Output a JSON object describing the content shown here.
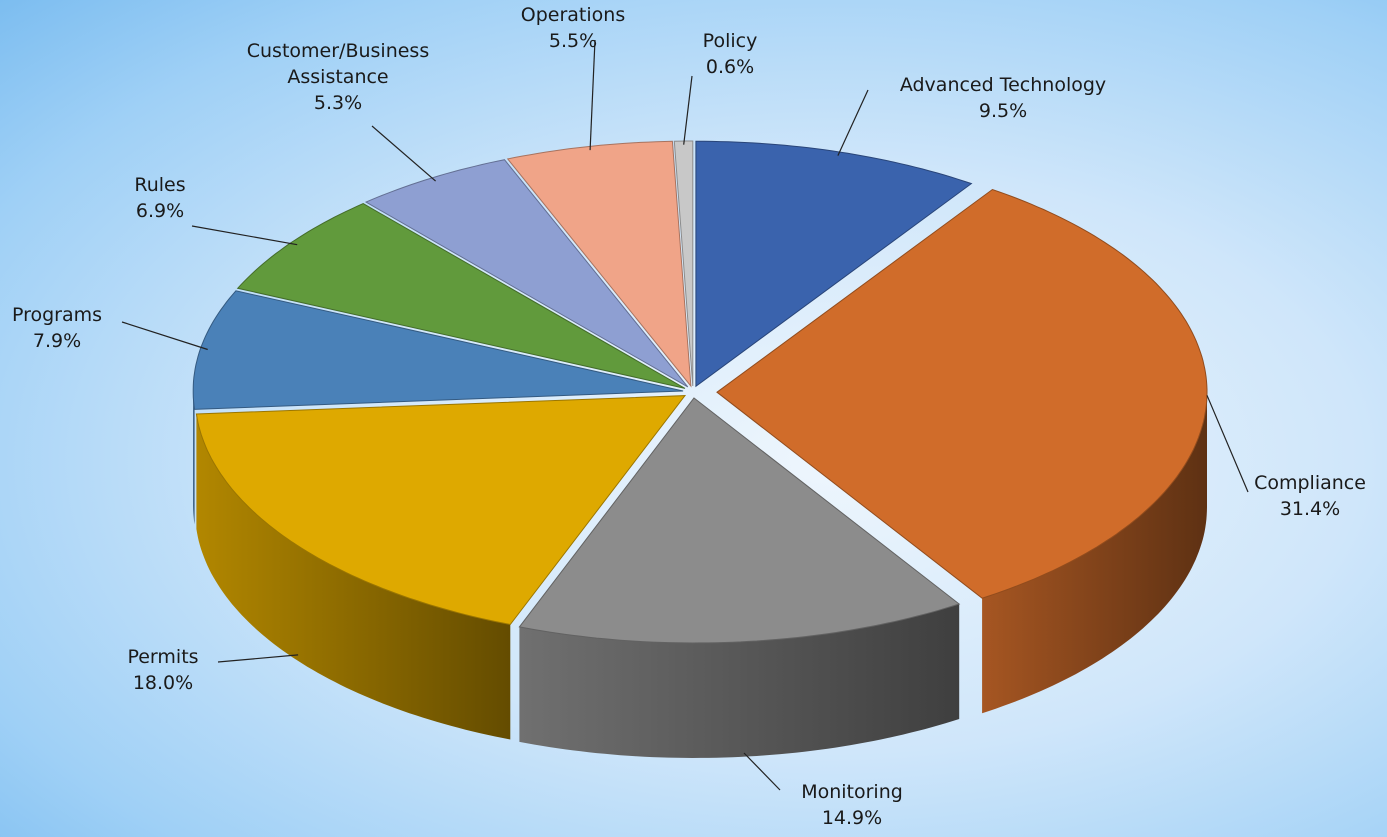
{
  "chart_data": {
    "type": "pie",
    "categories": [
      "Advanced Technology",
      "Compliance",
      "Monitoring",
      "Permits",
      "Programs",
      "Rules",
      "Customer/Business Assistance",
      "Operations",
      "Policy"
    ],
    "values": [
      9.5,
      31.4,
      14.9,
      18.0,
      7.9,
      6.9,
      5.3,
      5.5,
      0.6
    ],
    "value_labels": [
      "9.5%",
      "31.4%",
      "14.9%",
      "18.0%",
      "7.9%",
      "6.9%",
      "5.3%",
      "5.5%",
      "0.6%"
    ],
    "colors": [
      "#3a63ad",
      "#d06c2a",
      "#8c8c8c",
      "#dea900",
      "#4a81b8",
      "#619a3c",
      "#8e9fd2",
      "#f0a488",
      "#c8c8c8"
    ]
  }
}
